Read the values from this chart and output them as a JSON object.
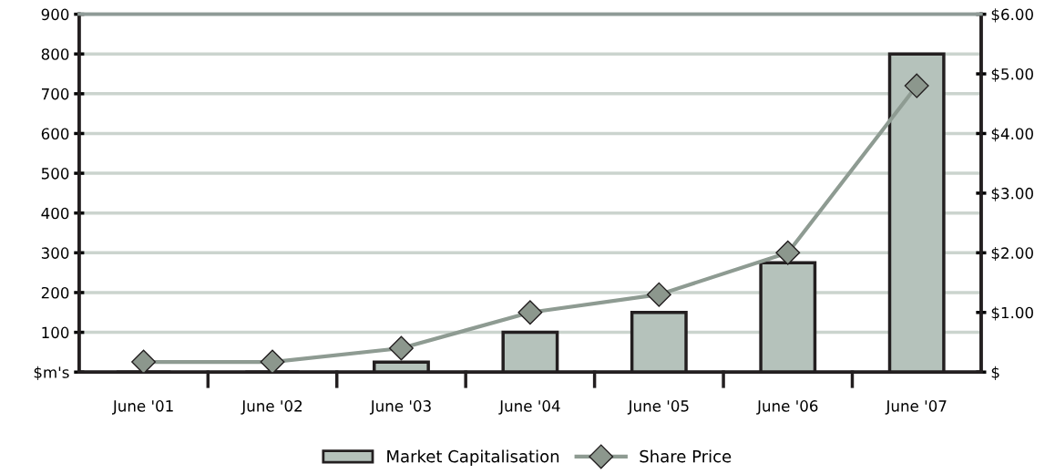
{
  "chart_data": {
    "type": "bar",
    "categories": [
      "June '01",
      "June '02",
      "June '03",
      "June '04",
      "June '05",
      "June '06",
      "June '07"
    ],
    "series": [
      {
        "name": "Market Capitalisation",
        "color": "#b5c2bb",
        "values": [
          null,
          null,
          25,
          100,
          150,
          275,
          800
        ]
      },
      {
        "name": "Share Price",
        "type": "line",
        "axis": "y2",
        "color": "#8e9b92",
        "marker": "diamond",
        "values": [
          0.17,
          0.17,
          0.4,
          1.0,
          1.3,
          2.0,
          4.8
        ]
      }
    ],
    "ylim": [
      0,
      900
    ],
    "yticks": [
      {
        "value": 0,
        "label": "$m's"
      },
      100,
      200,
      300,
      400,
      500,
      600,
      700,
      800,
      900
    ],
    "y2lim": [
      0,
      6
    ],
    "y2ticks": [
      {
        "value": 0,
        "label": "$"
      },
      {
        "value": 1,
        "label": "$1.00"
      },
      {
        "value": 2,
        "label": "$2.00"
      },
      {
        "value": 3,
        "label": "$3.00"
      },
      {
        "value": 4,
        "label": "$4.00"
      },
      {
        "value": 5,
        "label": "$5.00"
      },
      {
        "value": 6,
        "label": "$6.00"
      }
    ],
    "grid": "y",
    "legend": "bottom"
  }
}
